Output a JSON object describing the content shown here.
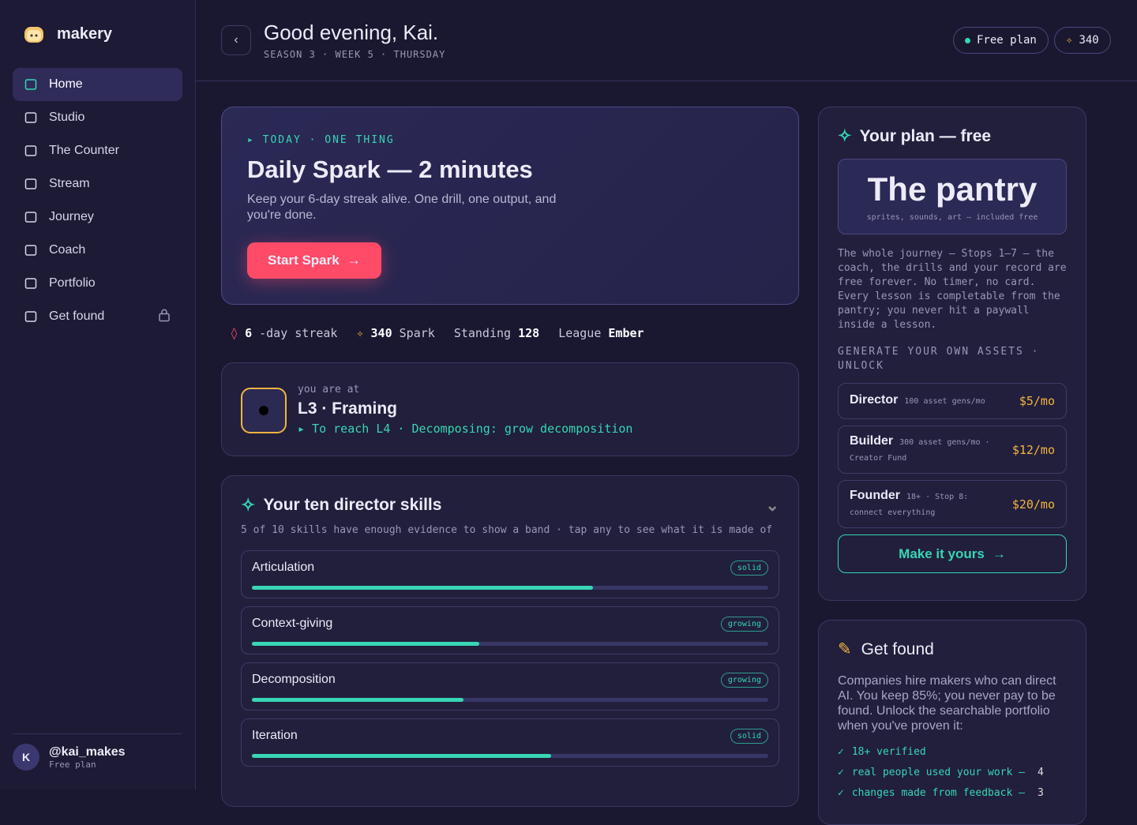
{
  "brand": "makery",
  "nav": [
    {
      "label": "Home",
      "active": true
    },
    {
      "label": "Studio"
    },
    {
      "label": "The Counter"
    },
    {
      "label": "Stream"
    },
    {
      "label": "Journey"
    },
    {
      "label": "Coach"
    },
    {
      "label": "Portfolio"
    },
    {
      "label": "Get found",
      "locked": true
    }
  ],
  "user": {
    "initial": "K",
    "handle": "@kai_makes",
    "plan": "Free plan"
  },
  "header": {
    "greeting": "Good evening, Kai.",
    "meta": "SEASON 3 · WEEK 5 · THURSDAY",
    "plan_badge": "Free plan",
    "spark": 340
  },
  "hero": {
    "eyebrow": "▸ TODAY · ONE THING",
    "title": "Daily Spark — 2 minutes",
    "body": "Keep your 6-day streak alive. One drill, one output, and you're done.",
    "button": "Start Spark"
  },
  "stats": {
    "streak": {
      "value": 6,
      "label": "-day streak"
    },
    "spark": {
      "value": 340,
      "label": "Spark"
    },
    "standing": {
      "label": "Standing",
      "value": 128
    },
    "league": {
      "label": "League",
      "value": "Ember"
    }
  },
  "level": {
    "caption": "you are at",
    "title": "L3 · Framing",
    "next": "▸ To reach L4 · Decomposing: grow decomposition"
  },
  "skills": {
    "title": "Your ten director skills",
    "subtitle": "5 of 10 skills have enough evidence to show a band · tap any to see what it is made of",
    "items": [
      {
        "name": "Articulation",
        "band": "solid",
        "progress": 66
      },
      {
        "name": "Context-giving",
        "band": "growing",
        "progress": 44
      },
      {
        "name": "Decomposition",
        "band": "growing",
        "progress": 41
      },
      {
        "name": "Iteration",
        "band": "solid",
        "progress": 58
      }
    ]
  },
  "plan": {
    "title": "Your plan — free",
    "pantry_title": "The pantry",
    "pantry_sub": "sprites, sounds, art — included free",
    "body": "The whole journey — Stops 1–7 — the coach, the drills and your record are free forever. No timer, no card. Every lesson is completable from the pantry; you never hit a paywall inside a lesson.",
    "unlock_title": "GENERATE YOUR OWN ASSETS · UNLOCK",
    "tiers": [
      {
        "name": "Director",
        "detail": "100 asset gens/mo",
        "price": "$5/mo"
      },
      {
        "name": "Builder",
        "detail": "300 asset gens/mo · Creator Fund",
        "price": "$12/mo"
      },
      {
        "name": "Founder",
        "detail": "18+ · Stop 8: connect everything",
        "price": "$20/mo"
      }
    ],
    "button": "Make it yours"
  },
  "get_found": {
    "title": "Get found",
    "body": "Companies hire makers who can direct AI. You keep 85%; you never pay to be found. Unlock the searchable portfolio when you've proven it:",
    "checks": [
      {
        "text": "18+ verified"
      },
      {
        "text": "real people used your work —",
        "count": 4
      },
      {
        "text": "changes made from feedback —",
        "count": 3
      }
    ]
  }
}
